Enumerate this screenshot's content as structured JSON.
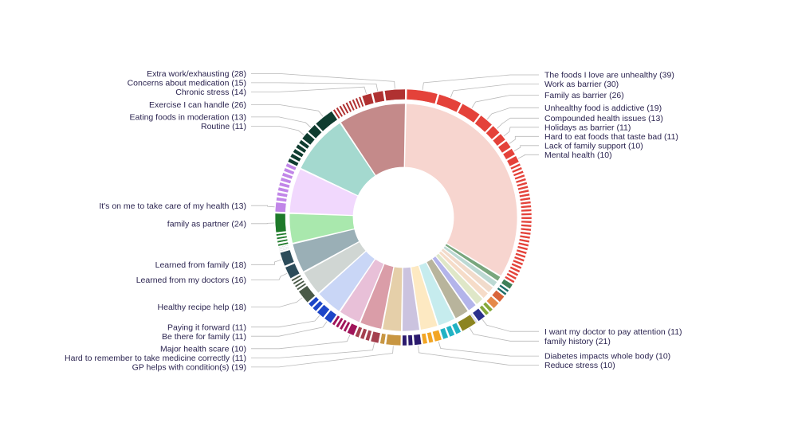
{
  "chart_data": {
    "type": "sunburst",
    "title": "",
    "inner": [
      {
        "color": "#f7d5cf",
        "value": 310
      },
      {
        "color": "#79a67d",
        "value": 8
      },
      {
        "color": "#bcd9d3",
        "value": 9
      },
      {
        "color": "#f1dbcb",
        "value": 10
      },
      {
        "color": "#f6dcc8",
        "value": 10
      },
      {
        "color": "#dfe7c8",
        "value": 12
      },
      {
        "color": "#b3b4ea",
        "value": 13
      },
      {
        "color": "#b8b49c",
        "value": 20
      },
      {
        "color": "#c6ecee",
        "value": 24
      },
      {
        "color": "#fde9c2",
        "value": 24
      },
      {
        "color": "#cbc3df",
        "value": 24
      },
      {
        "color": "#e5cfa9",
        "value": 26
      },
      {
        "color": "#da9da8",
        "value": 30
      },
      {
        "color": "#e8c0d8",
        "value": 30
      },
      {
        "color": "#c9d6f6",
        "value": 36
      },
      {
        "color": "#d0d6d3",
        "value": 34
      },
      {
        "color": "#9aafb6",
        "value": 40
      },
      {
        "color": "#a9e8ad",
        "value": 40
      },
      {
        "color": "#f1d8fd",
        "value": 60
      },
      {
        "color": "#a4d9cf",
        "value": 80
      },
      {
        "color": "#c48a8a",
        "value": 90
      }
    ],
    "outer": [
      {
        "group": 0,
        "color": "#e4423a",
        "value": 39,
        "label": "The foods I love are unhealthy (39)"
      },
      {
        "group": 0,
        "color": "#e4423a",
        "value": 30,
        "label": "Work as barrier (30)"
      },
      {
        "group": 0,
        "color": "#e4423a",
        "value": 26,
        "label": "Family as barrier (26)"
      },
      {
        "group": 0,
        "color": "#e4423a",
        "value": 19,
        "label": "Unhealthy food is addictive (19)"
      },
      {
        "group": 0,
        "color": "#e4423a",
        "value": 13,
        "label": "Compounded health issues (13)"
      },
      {
        "group": 0,
        "color": "#e4423a",
        "value": 11,
        "label": "Holidays as barrier (11)"
      },
      {
        "group": 0,
        "color": "#e4423a",
        "value": 11,
        "label": "Hard to eat foods that taste bad (11)"
      },
      {
        "group": 0,
        "color": "#e4423a",
        "value": 10,
        "label": "Lack of family support (10)"
      },
      {
        "group": 0,
        "color": "#e4423a",
        "value": 10,
        "label": "Mental health (10)"
      },
      {
        "group": 0,
        "color": "#e4423a",
        "count": 32,
        "value": 4.7
      },
      {
        "group": 1,
        "color": "#3f7f58",
        "value": 8
      },
      {
        "group": 2,
        "color": "#1f6f6a",
        "count": 2,
        "value": 4.5
      },
      {
        "group": 3,
        "color": "#d9653a",
        "value": 10
      },
      {
        "group": 4,
        "color": "#e58a4a",
        "value": 10
      },
      {
        "group": 5,
        "color": "#86a83a",
        "count": 2,
        "value": 6
      },
      {
        "group": 6,
        "color": "#2a2f8c",
        "value": 11,
        "label": "I want my doctor to pay attention (11)"
      },
      {
        "group": 6,
        "color": "#2a2f8c",
        "count": 2,
        "value": 1
      },
      {
        "group": 7,
        "color": "#8c8420",
        "value": 21,
        "label": "family history (21)"
      },
      {
        "group": 8,
        "color": "#21b3c4",
        "count": 3,
        "value": 8
      },
      {
        "group": 9,
        "color": "#f2a524",
        "value": 10,
        "label": "Diabetes impacts whole body (10)"
      },
      {
        "group": 9,
        "color": "#f2a524",
        "count": 2,
        "value": 7
      },
      {
        "group": 10,
        "color": "#2b1a6e",
        "value": 10,
        "label": "Reduce stress (10)"
      },
      {
        "group": 10,
        "color": "#2b1a6e",
        "count": 2,
        "value": 7
      },
      {
        "group": 11,
        "color": "#c89642",
        "value": 19,
        "label": "GP helps with condition(s) (19)"
      },
      {
        "group": 11,
        "color": "#c89642",
        "value": 7
      },
      {
        "group": 12,
        "color": "#a4404f",
        "value": 11,
        "label": "Hard to remember to take medicine correctly (11)"
      },
      {
        "group": 12,
        "color": "#a4404f",
        "count": 3,
        "value": 6.3
      },
      {
        "group": 13,
        "color": "#a0145a",
        "value": 10,
        "label": "Major health scare (10)"
      },
      {
        "group": 13,
        "color": "#a0145a",
        "count": 4,
        "value": 5
      },
      {
        "group": 14,
        "color": "#1d46c8",
        "value": 11,
        "label": "Be there for family (11)"
      },
      {
        "group": 14,
        "color": "#1d46c8",
        "value": 11,
        "label": "Paying it forward (11)"
      },
      {
        "group": 14,
        "color": "#1d46c8",
        "count": 2,
        "value": 7
      },
      {
        "group": 15,
        "color": "#4a5a48",
        "value": 18,
        "label": "Healthy recipe help (18)"
      },
      {
        "group": 15,
        "color": "#4a5a48",
        "count": 4,
        "value": 4
      },
      {
        "group": 16,
        "color": "#2c4c5a",
        "value": 16,
        "label": "Learned from my doctors (16)"
      },
      {
        "group": 16,
        "color": "#2c4c5a",
        "value": 18,
        "label": "Learned from family (18)"
      },
      {
        "group": 16,
        "color": "#2c4c5a",
        "count": 3,
        "value": 2
      },
      {
        "group": 17,
        "color": "#1e7a2a",
        "count": 4,
        "value": 4
      },
      {
        "group": 17,
        "color": "#1e7a2a",
        "value": 24,
        "label": "family as partner (24)"
      },
      {
        "group": 18,
        "color": "#c186e8",
        "value": 13,
        "label": "It's on me to take care of my health (13)"
      },
      {
        "group": 18,
        "color": "#c186e8",
        "count": 8,
        "value": 5.9
      },
      {
        "group": 19,
        "color": "#0f3d30",
        "count": 5,
        "value": 6.5
      },
      {
        "group": 19,
        "color": "#0f3d30",
        "value": 11,
        "label": "Routine (11)"
      },
      {
        "group": 19,
        "color": "#0f3d30",
        "value": 13,
        "label": "Eating foods in moderation (13)"
      },
      {
        "group": 19,
        "color": "#0f3d30",
        "value": 26,
        "label": "Exercise I can handle (26)"
      },
      {
        "group": 20,
        "color": "#b03131",
        "count": 9,
        "value": 4.5
      },
      {
        "group": 20,
        "color": "#b03131",
        "value": 14,
        "label": "Chronic stress (14)"
      },
      {
        "group": 20,
        "color": "#b03131",
        "value": 15,
        "label": "Concerns about medication (15)"
      },
      {
        "group": 20,
        "color": "#b03131",
        "value": 28,
        "label": "Extra work/exhausting (28)"
      }
    ]
  }
}
